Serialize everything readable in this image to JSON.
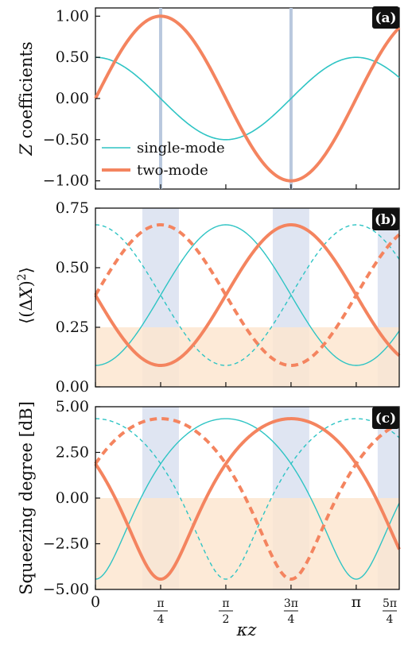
{
  "colors": {
    "single_mode": "#2ec4c4",
    "two_mode": "#f4845f",
    "blue_band": "#dfe5f2",
    "blue_line": "#b9c8de",
    "orange_band": "#fde6d0",
    "tag_bg": "#111111"
  },
  "x_axis": {
    "label": "κz",
    "ticks": [
      {
        "value": 0,
        "label": "0"
      },
      {
        "value": 0.7854,
        "num": "π",
        "den": "4"
      },
      {
        "value": 1.5708,
        "num": "π",
        "den": "2"
      },
      {
        "value": 2.3562,
        "num": "3π",
        "den": "4"
      },
      {
        "value": 3.1416,
        "label": "π"
      },
      {
        "value": 3.927,
        "num": "5π",
        "den": "4"
      }
    ],
    "xlim": [
      0,
      3.66
    ]
  },
  "chart_data": [
    {
      "type": "line",
      "panel_tag": "(a)",
      "ylabel": "Z coefficients",
      "ylim": [
        -1.1,
        1.1
      ],
      "yticks": [
        "1.00",
        "0.50",
        "0.00",
        "−0.50",
        "−1.00"
      ],
      "ytick_values": [
        1.0,
        0.5,
        0.0,
        -0.5,
        -1.0
      ],
      "vertical_lines": [
        0.7854,
        2.3562
      ],
      "series": [
        {
          "name": "single-mode",
          "formula": "0.5*cos(2x)",
          "style": "thin"
        },
        {
          "name": "two-mode",
          "formula": "sin(2x)",
          "style": "thick"
        }
      ],
      "legend": "lower-left"
    },
    {
      "type": "line",
      "panel_tag": "(b)",
      "ylabel": "⟨(ΔX)²⟩",
      "ylim": [
        0,
        0.75
      ],
      "yticks": [
        "0.75",
        "0.50",
        "0.25",
        "0.00"
      ],
      "ytick_values": [
        0.75,
        0.5,
        0.25,
        0.0
      ],
      "squeezing_threshold": 0.25,
      "bands": [
        [
          0.5654,
          1.0054
        ],
        [
          2.1362,
          2.5762
        ],
        [
          3.4,
          3.66
        ]
      ],
      "series": [
        {
          "name": "single-mode",
          "mean": 0.385,
          "amp": 0.295,
          "phase_sign": -1,
          "style": "thin-solid"
        },
        {
          "name": "single-mode",
          "mean": 0.385,
          "amp": 0.295,
          "phase_sign": 1,
          "style": "thin-dashed"
        },
        {
          "name": "two-mode",
          "mean": 0.385,
          "amp": 0.295,
          "phase_sign": -1,
          "style": "thick-solid"
        },
        {
          "name": "two-mode",
          "mean": 0.385,
          "amp": 0.295,
          "phase_sign": 1,
          "style": "thick-dashed"
        }
      ]
    },
    {
      "type": "line",
      "panel_tag": "(c)",
      "ylabel": "Squeezing degree [dB]",
      "ylim": [
        -5,
        5
      ],
      "yticks": [
        "5.00",
        "2.50",
        "0.00",
        "−2.50",
        "−5.00"
      ],
      "ytick_values": [
        5,
        2.5,
        0,
        -2.5,
        -5
      ],
      "squeezing_threshold": 0,
      "bands": [
        [
          0.5654,
          1.0054
        ],
        [
          2.1362,
          2.5762
        ],
        [
          3.4,
          3.66
        ]
      ],
      "series": [
        {
          "name": "single-mode",
          "formula": "10*log10(4*V)",
          "style": "thin-solid"
        },
        {
          "name": "single-mode",
          "style": "thin-dashed"
        },
        {
          "name": "two-mode",
          "style": "thick-solid"
        },
        {
          "name": "two-mode",
          "style": "thick-dashed"
        }
      ]
    }
  ],
  "legend": {
    "entries": [
      "single-mode",
      "two-mode"
    ]
  }
}
